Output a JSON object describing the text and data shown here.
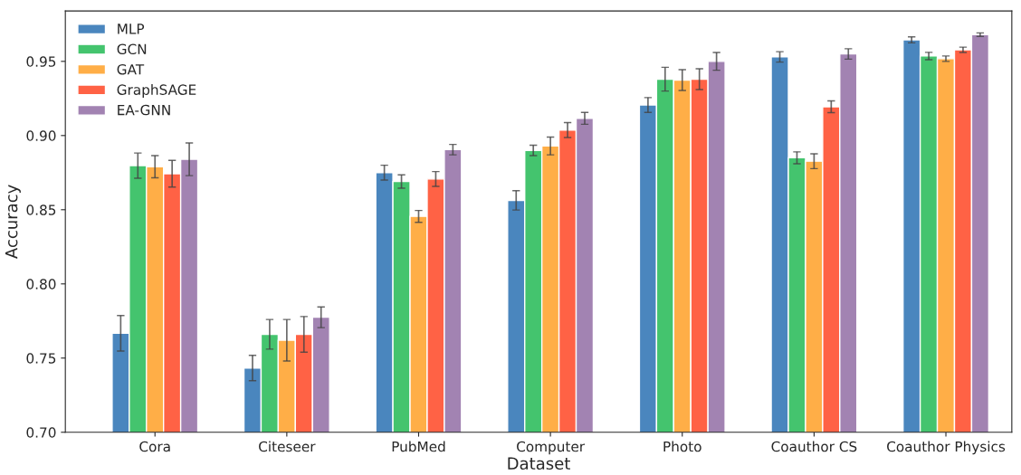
{
  "chart_data": {
    "type": "bar",
    "xlabel": "Dataset",
    "ylabel": "Accuracy",
    "categories": [
      "Cora",
      "Citeseer",
      "PubMed",
      "Computer",
      "Photo",
      "Coauthor CS",
      "Coauthor Physics"
    ],
    "series": [
      {
        "name": "MLP",
        "color": "#4a86be",
        "values": [
          0.7667,
          0.7433,
          0.875,
          0.8563,
          0.9206,
          0.953,
          0.9645
        ],
        "errors": [
          0.012,
          0.0085,
          0.005,
          0.0065,
          0.005,
          0.0035,
          0.002
        ]
      },
      {
        "name": "GCN",
        "color": "#44c46e",
        "values": [
          0.8797,
          0.766,
          0.869,
          0.89,
          0.938,
          0.885,
          0.9536
        ],
        "errors": [
          0.0085,
          0.01,
          0.0045,
          0.0035,
          0.008,
          0.004,
          0.0025
        ]
      },
      {
        "name": "GAT",
        "color": "#ffae47",
        "values": [
          0.879,
          0.762,
          0.8455,
          0.893,
          0.9374,
          0.8827,
          0.9518
        ],
        "errors": [
          0.0075,
          0.014,
          0.004,
          0.006,
          0.007,
          0.005,
          0.0018
        ]
      },
      {
        "name": "GraphSAGE",
        "color": "#ff6245",
        "values": [
          0.8743,
          0.766,
          0.8707,
          0.9037,
          0.938,
          0.9194,
          0.9578
        ],
        "errors": [
          0.009,
          0.012,
          0.005,
          0.005,
          0.007,
          0.004,
          0.0018
        ]
      },
      {
        "name": "EA-GNN",
        "color": "#a283b2",
        "values": [
          0.884,
          0.7775,
          0.8905,
          0.9116,
          0.95,
          0.955,
          0.968
        ],
        "errors": [
          0.011,
          0.007,
          0.0035,
          0.004,
          0.006,
          0.0035,
          0.0012
        ]
      }
    ],
    "ylim": [
      0.7,
      0.984
    ],
    "yticks": [
      {
        "value": 0.7,
        "label": "0.70"
      },
      {
        "value": 0.75,
        "label": "0.75"
      },
      {
        "value": 0.8,
        "label": "0.80"
      },
      {
        "value": 0.85,
        "label": "0.85"
      },
      {
        "value": 0.9,
        "label": "0.90"
      },
      {
        "value": 0.95,
        "label": "0.95"
      }
    ],
    "legend": "top left",
    "grid": false
  }
}
